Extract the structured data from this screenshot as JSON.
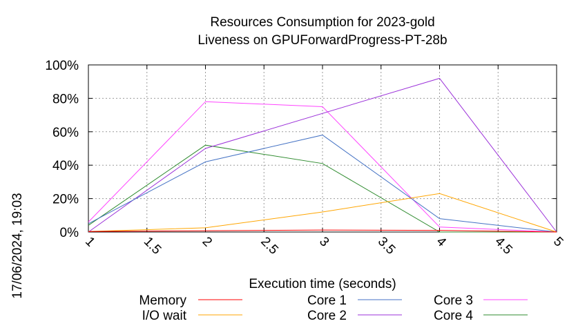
{
  "chart_data": {
    "type": "line",
    "title": [
      "Resources Consumption for 2023-gold",
      "Liveness on GPUForwardProgress-PT-28b"
    ],
    "xlabel": "Execution time (seconds)",
    "ylabel": "",
    "xlim": [
      1,
      5
    ],
    "ylim": [
      0,
      100
    ],
    "x_ticks": [
      "1",
      "1.5",
      "2",
      "2.5",
      "3",
      "3.5",
      "4",
      "4.5",
      "5"
    ],
    "y_ticks": [
      "0%",
      "20%",
      "40%",
      "60%",
      "80%",
      "100%"
    ],
    "grid": true,
    "legend_position": "bottom",
    "timestamp": "17/06/2024, 19:03",
    "series": [
      {
        "name": "Memory",
        "color": "#ff0000",
        "x": [
          1,
          2,
          3,
          4,
          5
        ],
        "y": [
          0.3,
          0.8,
          1.2,
          1.0,
          0
        ]
      },
      {
        "name": "I/O wait",
        "color": "#ffa500",
        "x": [
          1,
          2,
          3,
          4,
          5
        ],
        "y": [
          0.3,
          2.5,
          12,
          23,
          0
        ]
      },
      {
        "name": "Core 1",
        "color": "#4472c4",
        "x": [
          1,
          2,
          3,
          4,
          5
        ],
        "y": [
          5,
          42,
          58,
          8,
          0
        ]
      },
      {
        "name": "Core 2",
        "color": "#9b30d9",
        "x": [
          1,
          2,
          4,
          5
        ],
        "y": [
          0,
          50,
          92,
          0
        ]
      },
      {
        "name": "Core 3",
        "color": "#ff44ff",
        "x": [
          1,
          2,
          3,
          4,
          5
        ],
        "y": [
          6,
          78,
          75,
          3,
          0
        ]
      },
      {
        "name": "Core 4",
        "color": "#2e8b2e",
        "x": [
          1,
          2,
          3,
          4,
          5
        ],
        "y": [
          4,
          52,
          41,
          0,
          0
        ]
      }
    ]
  }
}
